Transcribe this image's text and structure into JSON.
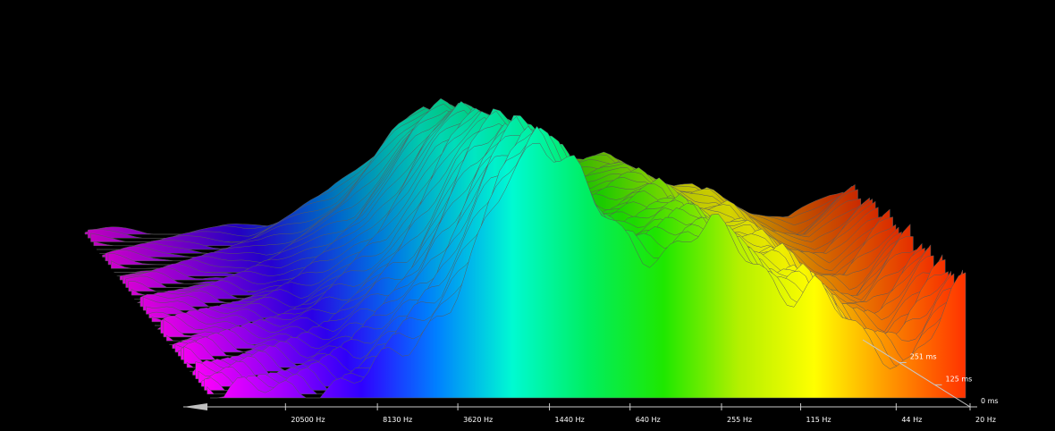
{
  "chart_data": {
    "type": "waterfall",
    "title": "",
    "xlabel": "",
    "ylabel": "",
    "x_axis": {
      "scale": "log",
      "direction": "descending",
      "ticks": [
        {
          "value": 20500,
          "label": "20500 Hz"
        },
        {
          "value": 8130,
          "label": "8130 Hz"
        },
        {
          "value": 3620,
          "label": "3620 Hz"
        },
        {
          "value": 1440,
          "label": "1440 Hz"
        },
        {
          "value": 640,
          "label": "640 Hz"
        },
        {
          "value": 255,
          "label": "255 Hz"
        },
        {
          "value": 115,
          "label": "115 Hz"
        },
        {
          "value": 44,
          "label": "44 Hz"
        },
        {
          "value": 20,
          "label": "20 Hz"
        }
      ],
      "range": [
        20,
        40000
      ]
    },
    "time_axis": {
      "unit": "ms",
      "ticks": [
        {
          "value": 0,
          "label": "0 ms"
        },
        {
          "value": 125,
          "label": "125 ms"
        },
        {
          "value": 251,
          "label": "251 ms"
        }
      ],
      "range": [
        0,
        400
      ]
    },
    "color_scale": [
      "#ff3300",
      "#ff8800",
      "#ffff00",
      "#00ee00",
      "#00ffff",
      "#0000ff",
      "#ff00ff"
    ],
    "grid": false,
    "legend": "none",
    "series": [
      {
        "x": [
          40000,
          20500,
          12000,
          8130,
          5500,
          3620,
          2700,
          2000,
          1440,
          1000,
          800,
          640,
          500,
          400,
          320,
          255,
          200,
          160,
          130,
          115,
          90,
          70,
          55,
          44,
          35,
          28,
          23,
          20
        ],
        "level": [
          2,
          2,
          3,
          6,
          14,
          25,
          40,
          58,
          70,
          62,
          50,
          42,
          38,
          40,
          44,
          46,
          40,
          35,
          30,
          28,
          30,
          22,
          15,
          12,
          10,
          18,
          26,
          30
        ]
      }
    ]
  }
}
